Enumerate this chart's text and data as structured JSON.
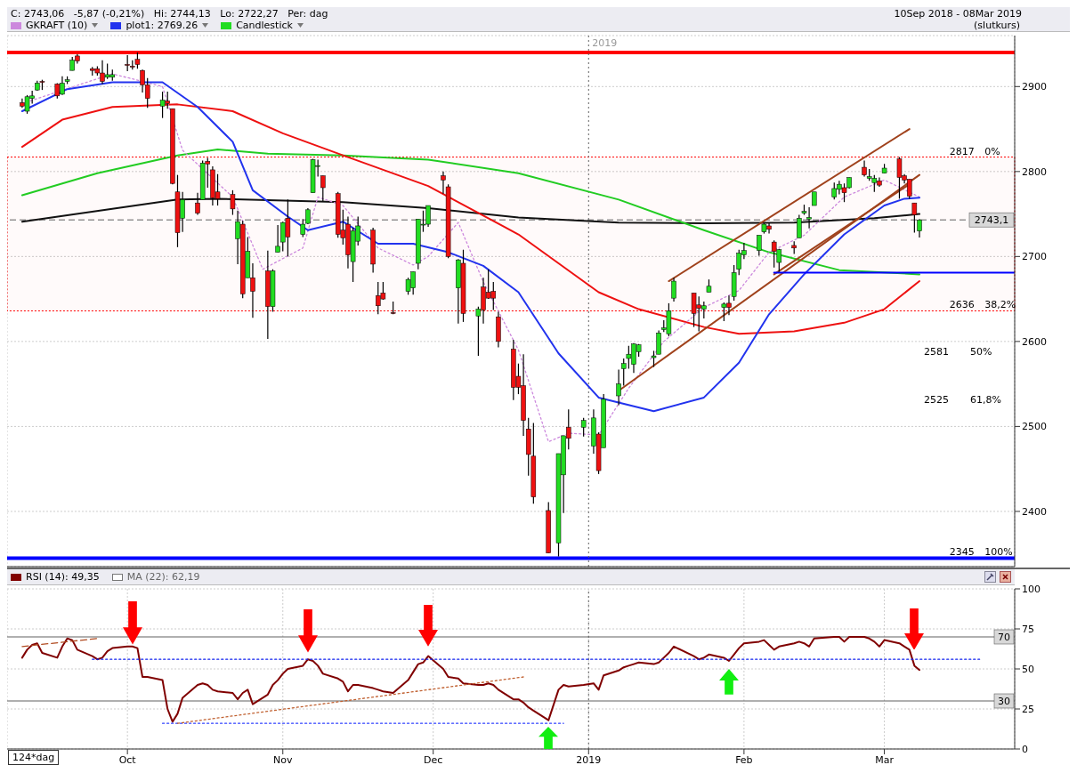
{
  "chart_data": [
    {
      "type": "candlestick",
      "title": "C: 2743,06   -5,87 (-0,21%)   Hi: 2744,13   Lo: 2722,27   Per: dag",
      "subtitle": "10Sep 2018 - 08Mar 2019",
      "annotations": [
        "(slutkurs)",
        {
          "text": "2817",
          "x": "2019-03-14",
          "y": 2817
        },
        {
          "text": "0%",
          "x": "2019-03-21",
          "y": 2817
        },
        {
          "text": "2636",
          "x": "2019-03-14",
          "y": 2636
        },
        {
          "text": "38,2%",
          "x": "2019-03-21",
          "y": 2636
        },
        "2581",
        "50%",
        "2525",
        "61,8%",
        {
          "text": "2345",
          "x": "2019-03-14",
          "y": 2345
        },
        {
          "text": "100%",
          "x": "2019-03-21",
          "y": 2345
        }
      ],
      "xlim": [
        "2018-09-07",
        "2019-03-27"
      ],
      "ylim": [
        2335,
        2960
      ],
      "yticks": [
        2400,
        2500,
        2600,
        2700,
        2800,
        2900
      ],
      "xticks": [
        {
          "value": "2018-10-01",
          "label": null
        },
        {
          "value": "2018-11-01",
          "label": null
        },
        {
          "value": "2018-12-01",
          "label": null
        },
        {
          "value": "2019-01-01",
          "label": null
        },
        {
          "value": "2019-02-01",
          "label": null
        },
        {
          "value": "2019-03-01",
          "label": null
        }
      ],
      "tick_labels": "y",
      "grid": true,
      "legend": "top left",
      "ref_lines": [
        {
          "axis": "y",
          "value": 2940,
          "color": "#ff0000"
        },
        {
          "axis": "y",
          "value": 2345,
          "color": "#0000ff"
        },
        {
          "axis": "y",
          "value": 2743.1,
          "label": "2743,1",
          "color": "#606060",
          "line_style": "dashed"
        },
        {
          "axis": "x",
          "value": "2019-01-01",
          "label": "2019",
          "color": "#606060",
          "line_style": "dotted"
        }
      ],
      "bands": [
        {
          "axis": "y",
          "from": 2636,
          "to": 2817,
          "color": "#ff0000"
        }
      ],
      "series": [
        {
          "type": "line",
          "color": "#111111",
          "x": [
            "2018-09-10",
            "2018-10-11",
            "2018-10-19",
            "2018-11-13",
            "2018-11-30",
            "2018-12-18",
            "2019-01-07",
            "2019-01-24",
            "2019-02-11",
            "2019-02-27",
            "2019-03-08"
          ],
          "values": [
            2741,
            2767,
            2768,
            2764,
            2757,
            2746,
            2740,
            2739,
            2740,
            2745,
            2750
          ]
        },
        {
          "type": "line",
          "color": "#22cc22",
          "x": [
            "2018-09-10",
            "2018-09-25",
            "2018-10-11",
            "2018-10-19",
            "2018-10-29",
            "2018-11-13",
            "2018-11-30",
            "2018-12-18",
            "2019-01-07",
            "2019-01-24",
            "2019-02-06",
            "2019-02-20",
            "2019-03-08"
          ],
          "values": [
            2772,
            2798,
            2819,
            2826,
            2821,
            2819,
            2814,
            2798,
            2767,
            2731,
            2705,
            2684,
            2679
          ]
        },
        {
          "type": "line",
          "color": "#ee1111",
          "x": [
            "2018-09-10",
            "2018-09-18",
            "2018-09-28",
            "2018-10-11",
            "2018-10-22",
            "2018-11-01",
            "2018-11-13",
            "2018-11-30",
            "2018-12-18",
            "2019-01-03",
            "2019-01-11",
            "2019-01-24",
            "2019-01-31",
            "2019-02-11",
            "2019-02-21",
            "2019-03-01",
            "2019-03-08"
          ],
          "values": [
            2829,
            2861,
            2876,
            2879,
            2871,
            2845,
            2819,
            2783,
            2726,
            2658,
            2638,
            2617,
            2609,
            2612,
            2622,
            2638,
            2671
          ]
        },
        {
          "type": "line",
          "name": "GKRAFT (10)",
          "color": "#cc88dd",
          "line_style": "dotted",
          "x": [
            "2018-09-10",
            "2018-09-28",
            "2018-10-08",
            "2018-10-12",
            "2018-10-22",
            "2018-10-28",
            "2018-11-05",
            "2018-11-08",
            "2018-11-13",
            "2018-11-20",
            "2018-11-27",
            "2018-11-30",
            "2018-12-06",
            "2018-12-11",
            "2018-12-18",
            "2018-12-24",
            "2018-12-28",
            "2019-01-03",
            "2019-01-09",
            "2019-01-16",
            "2019-01-24",
            "2019-01-31",
            "2019-02-06",
            "2019-02-13",
            "2019-02-21",
            "2019-03-01",
            "2019-03-08"
          ],
          "values": [
            2880,
            2915,
            2900,
            2825,
            2770,
            2685,
            2710,
            2770,
            2760,
            2710,
            2690,
            2700,
            2740,
            2670,
            2590,
            2482,
            2492,
            2490,
            2545,
            2600,
            2640,
            2660,
            2705,
            2725,
            2770,
            2790,
            2770
          ]
        },
        {
          "type": "line",
          "name": "plot1: 2769.26",
          "color": "#2233ee",
          "x": [
            "2018-09-10",
            "2018-09-19",
            "2018-09-28",
            "2018-10-08",
            "2018-10-15",
            "2018-10-22",
            "2018-10-26",
            "2018-11-02",
            "2018-11-06",
            "2018-11-13",
            "2018-11-20",
            "2018-11-27",
            "2018-12-04",
            "2018-12-11",
            "2018-12-18",
            "2018-12-26",
            "2019-01-03",
            "2019-01-14",
            "2019-01-24",
            "2019-01-31",
            "2019-02-06",
            "2019-02-13",
            "2019-02-21",
            "2019-03-01",
            "2019-03-05",
            "2019-03-08"
          ],
          "values": [
            2871,
            2897,
            2905,
            2905,
            2876,
            2835,
            2778,
            2747,
            2731,
            2741,
            2715,
            2715,
            2705,
            2689,
            2658,
            2586,
            2534,
            2518,
            2534,
            2575,
            2632,
            2679,
            2726,
            2760,
            2768,
            2769.26
          ]
        },
        {
          "type": "line",
          "color": "#a0421c",
          "x": [
            "2019-01-17",
            "2019-03-06"
          ],
          "values": [
            2671,
            2850
          ]
        },
        {
          "type": "line",
          "color": "#a0421c",
          "x": [
            "2019-01-07",
            "2019-03-08"
          ],
          "values": [
            2542,
            2796
          ]
        },
        {
          "type": "line",
          "color": "#a0421c",
          "x": [
            "2019-02-07",
            "2019-03-06"
          ],
          "values": [
            2679,
            2785
          ]
        },
        {
          "type": "line",
          "color": "#0000ff",
          "x": [
            "2019-02-07",
            "2019-03-27"
          ],
          "values": [
            2681,
            2681
          ]
        },
        {
          "type": "candlestick",
          "name": "Candlestick",
          "color": "#22dd22",
          "x": [
            "2018-09-10",
            "2018-09-11",
            "2018-09-12",
            "2018-09-13",
            "2018-09-14",
            "2018-09-17",
            "2018-09-18",
            "2018-09-19",
            "2018-09-20",
            "2018-09-21",
            "2018-09-24",
            "2018-09-25",
            "2018-09-26",
            "2018-09-27",
            "2018-09-28",
            "2018-10-01",
            "2018-10-02",
            "2018-10-03",
            "2018-10-04",
            "2018-10-05",
            "2018-10-08",
            "2018-10-09",
            "2018-10-10",
            "2018-10-11",
            "2018-10-12",
            "2018-10-15",
            "2018-10-16",
            "2018-10-17",
            "2018-10-18",
            "2018-10-19",
            "2018-10-22",
            "2018-10-23",
            "2018-10-24",
            "2018-10-25",
            "2018-10-26",
            "2018-10-29",
            "2018-10-30",
            "2018-10-31",
            "2018-11-01",
            "2018-11-02",
            "2018-11-05",
            "2018-11-06",
            "2018-11-07",
            "2018-11-08",
            "2018-11-09",
            "2018-11-12",
            "2018-11-13",
            "2018-11-14",
            "2018-11-15",
            "2018-11-16",
            "2018-11-19",
            "2018-11-20",
            "2018-11-21",
            "2018-11-23",
            "2018-11-26",
            "2018-11-27",
            "2018-11-28",
            "2018-11-29",
            "2018-11-30",
            "2018-12-03",
            "2018-12-04",
            "2018-12-06",
            "2018-12-07",
            "2018-12-10",
            "2018-12-11",
            "2018-12-12",
            "2018-12-13",
            "2018-12-14",
            "2018-12-17",
            "2018-12-18",
            "2018-12-19",
            "2018-12-20",
            "2018-12-21",
            "2018-12-24",
            "2018-12-26",
            "2018-12-27",
            "2018-12-28",
            "2018-12-31",
            "2019-01-02",
            "2019-01-03",
            "2019-01-04",
            "2019-01-07",
            "2019-01-08",
            "2019-01-09",
            "2019-01-10",
            "2019-01-11",
            "2019-01-14",
            "2019-01-15",
            "2019-01-16",
            "2019-01-17",
            "2019-01-18",
            "2019-01-22",
            "2019-01-23",
            "2019-01-24",
            "2019-01-25",
            "2019-01-28",
            "2019-01-29",
            "2019-01-30",
            "2019-01-31",
            "2019-02-01",
            "2019-02-04",
            "2019-02-05",
            "2019-02-06",
            "2019-02-07",
            "2019-02-08",
            "2019-02-11",
            "2019-02-12",
            "2019-02-13",
            "2019-02-14",
            "2019-02-15",
            "2019-02-19",
            "2019-02-20",
            "2019-02-21",
            "2019-02-22",
            "2019-02-25",
            "2019-02-26",
            "2019-02-27",
            "2019-02-28",
            "2019-03-01",
            "2019-03-04",
            "2019-03-05",
            "2019-03-06",
            "2019-03-07",
            "2019-03-08"
          ],
          "ohlc": [
            [
              2881,
              2886,
              2875,
              2877
            ],
            [
              2871,
              2890,
              2868,
              2888
            ],
            [
              2886,
              2895,
              2880,
              2889
            ],
            [
              2896,
              2907,
              2895,
              2904
            ],
            [
              2906,
              2908,
              2896,
              2905
            ],
            [
              2903,
              2904,
              2886,
              2889
            ],
            [
              2891,
              2912,
              2890,
              2904
            ],
            [
              2906,
              2912,
              2903,
              2908
            ],
            [
              2919,
              2935,
              2919,
              2931
            ],
            [
              2936,
              2938,
              2927,
              2930
            ],
            [
              2921,
              2923,
              2913,
              2919
            ],
            [
              2921,
              2924,
              2913,
              2916
            ],
            [
              2916,
              2931,
              2903,
              2906
            ],
            [
              2911,
              2927,
              2909,
              2914
            ],
            [
              2911,
              2920,
              2907,
              2914
            ],
            [
              2926,
              2937,
              2918,
              2925
            ],
            [
              2924,
              2931,
              2920,
              2923
            ],
            [
              2932,
              2940,
              2921,
              2926
            ],
            [
              2919,
              2920,
              2893,
              2902
            ],
            [
              2902,
              2910,
              2875,
              2886
            ],
            [
              2877,
              2894,
              2863,
              2884
            ],
            [
              2883,
              2894,
              2874,
              2880
            ],
            [
              2874,
              2874,
              2785,
              2786
            ],
            [
              2776,
              2796,
              2711,
              2728
            ],
            [
              2745,
              2776,
              2729,
              2767
            ],
            [
              2763,
              2775,
              2749,
              2751
            ],
            [
              2767,
              2813,
              2767,
              2810
            ],
            [
              2812,
              2816,
              2781,
              2809
            ],
            [
              2802,
              2806,
              2760,
              2769
            ],
            [
              2776,
              2797,
              2760,
              2768
            ],
            [
              2773,
              2778,
              2749,
              2756
            ],
            [
              2721,
              2754,
              2691,
              2741
            ],
            [
              2738,
              2742,
              2651,
              2656
            ],
            [
              2675,
              2723,
              2675,
              2706
            ],
            [
              2675,
              2692,
              2628,
              2659
            ],
            [
              2683,
              2707,
              2603,
              2641
            ],
            [
              2641,
              2685,
              2635,
              2683
            ],
            [
              2705,
              2737,
              2705,
              2712
            ],
            [
              2717,
              2741,
              2706,
              2740
            ],
            [
              2745,
              2767,
              2700,
              2723
            ],
            [
              2726,
              2744,
              2723,
              2738
            ],
            [
              2739,
              2757,
              2738,
              2755
            ],
            [
              2775,
              2815,
              2775,
              2814
            ],
            [
              2806,
              2814,
              2794,
              2807
            ],
            [
              2795,
              2795,
              2765,
              2781
            ],
            [
              2774,
              2776,
              2722,
              2726
            ],
            [
              2731,
              2755,
              2714,
              2722
            ],
            [
              2738,
              2747,
              2686,
              2702
            ],
            [
              2694,
              2734,
              2670,
              2730
            ],
            [
              2718,
              2747,
              2713,
              2736
            ],
            [
              2731,
              2734,
              2681,
              2691
            ],
            [
              2654,
              2670,
              2632,
              2642
            ],
            [
              2657,
              2670,
              2649,
              2650
            ],
            [
              2634,
              2647,
              2632,
              2633
            ],
            [
              2659,
              2675,
              2655,
              2673
            ],
            [
              2663,
              2682,
              2655,
              2682
            ],
            [
              2692,
              2744,
              2685,
              2744
            ],
            [
              2737,
              2754,
              2729,
              2738
            ],
            [
              2738,
              2760,
              2735,
              2760
            ],
            [
              2795,
              2800,
              2774,
              2790
            ],
            [
              2782,
              2785,
              2698,
              2700
            ],
            [
              2663,
              2697,
              2621,
              2696
            ],
            [
              2692,
              2708,
              2623,
              2633
            ],
            [
              2630,
              2641,
              2583,
              2638
            ],
            [
              2664,
              2675,
              2621,
              2637
            ],
            [
              2658,
              2685,
              2650,
              2651
            ],
            [
              2659,
              2670,
              2637,
              2651
            ],
            [
              2629,
              2635,
              2593,
              2600
            ],
            [
              2591,
              2602,
              2531,
              2546
            ],
            [
              2559,
              2574,
              2538,
              2546
            ],
            [
              2548,
              2585,
              2489,
              2507
            ],
            [
              2497,
              2510,
              2442,
              2467
            ],
            [
              2465,
              2504,
              2409,
              2417
            ],
            [
              2401,
              2411,
              2351,
              2351
            ],
            [
              2363,
              2468,
              2347,
              2468
            ],
            [
              2443,
              2489,
              2398,
              2489
            ],
            [
              2499,
              2520,
              2473,
              2486
            ],
            [
              2499,
              2510,
              2488,
              2507
            ],
            [
              2477,
              2520,
              2468,
              2510
            ],
            [
              2491,
              2493,
              2444,
              2448
            ],
            [
              2475,
              2538,
              2475,
              2532
            ],
            [
              2536,
              2567,
              2525,
              2550
            ],
            [
              2568,
              2580,
              2548,
              2574
            ],
            [
              2580,
              2595,
              2568,
              2585
            ],
            [
              2573,
              2598,
              2563,
              2597
            ],
            [
              2588,
              2597,
              2582,
              2596
            ],
            [
              2581,
              2589,
              2570,
              2583
            ],
            [
              2585,
              2613,
              2585,
              2610
            ],
            [
              2614,
              2625,
              2611,
              2616
            ],
            [
              2609,
              2645,
              2606,
              2636
            ],
            [
              2651,
              2675,
              2647,
              2671
            ],
            [
              2657,
              2657,
              2617,
              2633
            ],
            [
              2643,
              2653,
              2612,
              2639
            ],
            [
              2638,
              2647,
              2627,
              2642
            ],
            [
              2658,
              2673,
              2658,
              2665
            ],
            [
              2640,
              2646,
              2624,
              2644
            ],
            [
              2645,
              2654,
              2631,
              2640
            ],
            [
              2653,
              2690,
              2648,
              2681
            ],
            [
              2685,
              2708,
              2678,
              2704
            ],
            [
              2702,
              2716,
              2697,
              2707
            ],
            [
              2707,
              2725,
              2701,
              2725
            ],
            [
              2729,
              2739,
              2727,
              2738
            ],
            [
              2736,
              2739,
              2727,
              2732
            ],
            [
              2717,
              2719,
              2687,
              2706
            ],
            [
              2693,
              2709,
              2682,
              2708
            ],
            [
              2713,
              2718,
              2703,
              2710
            ],
            [
              2722,
              2749,
              2722,
              2745
            ],
            [
              2751,
              2761,
              2749,
              2753
            ],
            [
              2744,
              2758,
              2733,
              2746
            ],
            [
              2760,
              2776,
              2760,
              2776
            ],
            [
              2770,
              2787,
              2767,
              2780
            ],
            [
              2779,
              2789,
              2773,
              2785
            ],
            [
              2781,
              2786,
              2764,
              2775
            ],
            [
              2781,
              2793,
              2780,
              2793
            ],
            [
              2805,
              2813,
              2794,
              2796
            ],
            [
              2792,
              2803,
              2789,
              2794
            ],
            [
              2787,
              2796,
              2776,
              2792
            ],
            [
              2789,
              2793,
              2782,
              2784
            ],
            [
              2798,
              2809,
              2798,
              2804
            ],
            [
              2815,
              2817,
              2768,
              2793
            ],
            [
              2795,
              2797,
              2786,
              2790
            ],
            [
              2791,
              2791,
              2768,
              2771
            ],
            [
              2763,
              2763,
              2728,
              2749
            ],
            [
              2730,
              2744.13,
              2722.27,
              2743.06
            ]
          ],
          "colors": [
            "#ee1111",
            "#22dd22",
            "#22dd22",
            "#22dd22",
            "#ee1111",
            "#ee1111",
            "#22dd22",
            "#22dd22",
            "#22dd22",
            "#ee1111",
            "#ee1111",
            "#ee1111",
            "#ee1111",
            "#22dd22",
            "#22dd22",
            "#ee1111",
            "#ee1111",
            "#ee1111",
            "#ee1111",
            "#ee1111",
            "#22dd22",
            "#ee1111",
            "#ee1111",
            "#ee1111",
            "#22dd22",
            "#ee1111",
            "#22dd22",
            "#ee1111",
            "#ee1111",
            "#ee1111",
            "#ee1111",
            "#22dd22",
            "#ee1111",
            "#22dd22",
            "#ee1111",
            "#ee1111",
            "#22dd22",
            "#22dd22",
            "#22dd22",
            "#ee1111",
            "#22dd22",
            "#22dd22",
            "#22dd22",
            "#22dd22",
            "#ee1111",
            "#ee1111",
            "#ee1111",
            "#ee1111",
            "#22dd22",
            "#22dd22",
            "#ee1111",
            "#ee1111",
            "#ee1111",
            "#ee1111",
            "#22dd22",
            "#22dd22",
            "#22dd22",
            "#22dd22",
            "#22dd22",
            "#ee1111",
            "#ee1111",
            "#22dd22",
            "#ee1111",
            "#22dd22",
            "#ee1111",
            "#ee1111",
            "#ee1111",
            "#ee1111",
            "#ee1111",
            "#ee1111",
            "#ee1111",
            "#ee1111",
            "#ee1111",
            "#ee1111",
            "#22dd22",
            "#22dd22",
            "#ee1111",
            "#22dd22",
            "#22dd22",
            "#ee1111",
            "#22dd22",
            "#22dd22",
            "#22dd22",
            "#22dd22",
            "#22dd22",
            "#22dd22",
            "#22dd22",
            "#22dd22",
            "#22dd22",
            "#22dd22",
            "#22dd22",
            "#ee1111",
            "#ee1111",
            "#22dd22",
            "#22dd22",
            "#22dd22",
            "#ee1111",
            "#22dd22",
            "#22dd22",
            "#22dd22",
            "#22dd22",
            "#22dd22",
            "#ee1111",
            "#ee1111",
            "#22dd22",
            "#ee1111",
            "#22dd22",
            "#22dd22",
            "#22dd22",
            "#22dd22",
            "#22dd22",
            "#22dd22",
            "#ee1111",
            "#22dd22",
            "#ee1111",
            "#22dd22",
            "#22dd22",
            "#ee1111",
            "#22dd22",
            "#ee1111",
            "#ee1111",
            "#ee1111",
            "#ee1111",
            "#22dd22"
          ]
        }
      ]
    },
    {
      "type": "line",
      "annotations": [
        "MA (22): 62,19",
        "124*dag"
      ],
      "x": [
        "2018-09-10",
        "2018-09-11",
        "2018-09-12",
        "2018-09-13",
        "2018-09-14",
        "2018-09-17",
        "2018-09-18",
        "2018-09-19",
        "2018-09-20",
        "2018-09-21",
        "2018-09-24",
        "2018-09-25",
        "2018-09-26",
        "2018-09-27",
        "2018-09-28",
        "2018-10-01",
        "2018-10-02",
        "2018-10-03",
        "2018-10-04",
        "2018-10-05",
        "2018-10-08",
        "2018-10-09",
        "2018-10-10",
        "2018-10-11",
        "2018-10-12",
        "2018-10-15",
        "2018-10-16",
        "2018-10-17",
        "2018-10-18",
        "2018-10-19",
        "2018-10-22",
        "2018-10-23",
        "2018-10-24",
        "2018-10-25",
        "2018-10-26",
        "2018-10-29",
        "2018-10-30",
        "2018-10-31",
        "2018-11-01",
        "2018-11-02",
        "2018-11-05",
        "2018-11-06",
        "2018-11-07",
        "2018-11-08",
        "2018-11-09",
        "2018-11-12",
        "2018-11-13",
        "2018-11-14",
        "2018-11-15",
        "2018-11-16",
        "2018-11-19",
        "2018-11-20",
        "2018-11-21",
        "2018-11-23",
        "2018-11-26",
        "2018-11-27",
        "2018-11-28",
        "2018-11-29",
        "2018-11-30",
        "2018-12-03",
        "2018-12-04",
        "2018-12-06",
        "2018-12-07",
        "2018-12-10",
        "2018-12-11",
        "2018-12-12",
        "2018-12-13",
        "2018-12-14",
        "2018-12-17",
        "2018-12-18",
        "2018-12-19",
        "2018-12-20",
        "2018-12-21",
        "2018-12-24",
        "2018-12-26",
        "2018-12-27",
        "2018-12-28",
        "2018-12-31",
        "2019-01-02",
        "2019-01-03",
        "2019-01-04",
        "2019-01-07",
        "2019-01-08",
        "2019-01-09",
        "2019-01-10",
        "2019-01-11",
        "2019-01-14",
        "2019-01-15",
        "2019-01-16",
        "2019-01-17",
        "2019-01-18",
        "2019-01-22",
        "2019-01-23",
        "2019-01-24",
        "2019-01-25",
        "2019-01-28",
        "2019-01-29",
        "2019-01-30",
        "2019-01-31",
        "2019-02-01",
        "2019-02-04",
        "2019-02-05",
        "2019-02-06",
        "2019-02-07",
        "2019-02-08",
        "2019-02-11",
        "2019-02-12",
        "2019-02-13",
        "2019-02-14",
        "2019-02-15",
        "2019-02-19",
        "2019-02-20",
        "2019-02-21",
        "2019-02-22",
        "2019-02-25",
        "2019-02-26",
        "2019-02-27",
        "2019-02-28",
        "2019-03-01",
        "2019-03-04",
        "2019-03-05",
        "2019-03-06",
        "2019-03-07",
        "2019-03-08"
      ],
      "xlim": [
        "2018-09-07",
        "2019-03-27"
      ],
      "ylim": [
        0,
        100
      ],
      "yticks": [
        0,
        25,
        50,
        75,
        100
      ],
      "xticks": [
        {
          "value": "2018-10-01",
          "label": "Oct"
        },
        {
          "value": "2018-11-01",
          "label": "Nov"
        },
        {
          "value": "2018-12-01",
          "label": "Dec"
        },
        {
          "value": "2019-01-01",
          "label": "2019"
        },
        {
          "value": "2019-02-01",
          "label": "Feb"
        },
        {
          "value": "2019-03-01",
          "label": "Mar"
        }
      ],
      "grid": true,
      "legend": "top left",
      "marker": "none",
      "ref_lines": [
        {
          "axis": "y",
          "value": 70,
          "label": "70",
          "color": "#606060",
          "line_style": "solid"
        },
        {
          "axis": "y",
          "value": 30,
          "label": "30",
          "color": "#606060",
          "line_style": "solid"
        },
        {
          "axis": "x",
          "value": "2019-01-01",
          "color": "#606060",
          "line_style": "dotted"
        }
      ],
      "series": [
        {
          "name": "RSI (14): 49,35",
          "color": "#800000",
          "values": [
            57,
            62,
            65,
            66,
            60,
            57,
            64,
            69,
            68,
            62,
            58,
            56,
            57,
            61,
            63,
            64,
            64,
            63,
            45,
            45,
            43,
            25,
            17,
            22,
            32,
            40,
            41,
            40,
            37,
            36,
            35,
            31,
            35,
            37,
            28,
            34,
            40,
            43,
            47,
            50,
            52,
            56,
            55,
            52,
            47,
            44,
            42,
            36,
            40,
            40,
            38,
            37,
            36,
            35,
            43,
            48,
            53,
            54,
            58,
            50,
            45,
            44,
            41,
            40,
            40,
            41,
            40,
            37,
            31,
            31,
            29,
            26,
            24,
            18,
            37,
            40,
            39,
            40,
            41,
            37,
            46,
            49,
            51,
            52,
            53,
            54,
            53,
            54,
            57,
            60,
            64,
            58,
            56,
            57,
            59,
            57,
            55,
            59,
            63,
            66,
            67,
            68,
            65,
            62,
            64,
            66,
            67,
            66,
            64,
            69,
            70,
            70,
            67,
            70,
            70,
            69,
            67,
            64,
            68,
            66,
            64,
            62,
            52,
            49.35
          ]
        },
        {
          "type": "line",
          "color": "#1122ee",
          "line_style": "dotted",
          "x": [
            "2018-09-24",
            "2019-03-20"
          ],
          "values": [
            56,
            56
          ]
        },
        {
          "type": "line",
          "color": "#3344ff",
          "line_style": "dotted",
          "x": [
            "2018-10-08",
            "2018-12-27"
          ],
          "values": [
            16,
            16
          ]
        },
        {
          "type": "line",
          "color": "#b04a20",
          "line_style": "dashed",
          "x": [
            "2018-09-10",
            "2018-09-25"
          ],
          "values": [
            64,
            69
          ]
        },
        {
          "type": "line",
          "color": "#c06030",
          "line_style": "dotted",
          "x": [
            "2018-10-11",
            "2018-12-19"
          ],
          "values": [
            16,
            45
          ]
        }
      ]
    }
  ]
}
